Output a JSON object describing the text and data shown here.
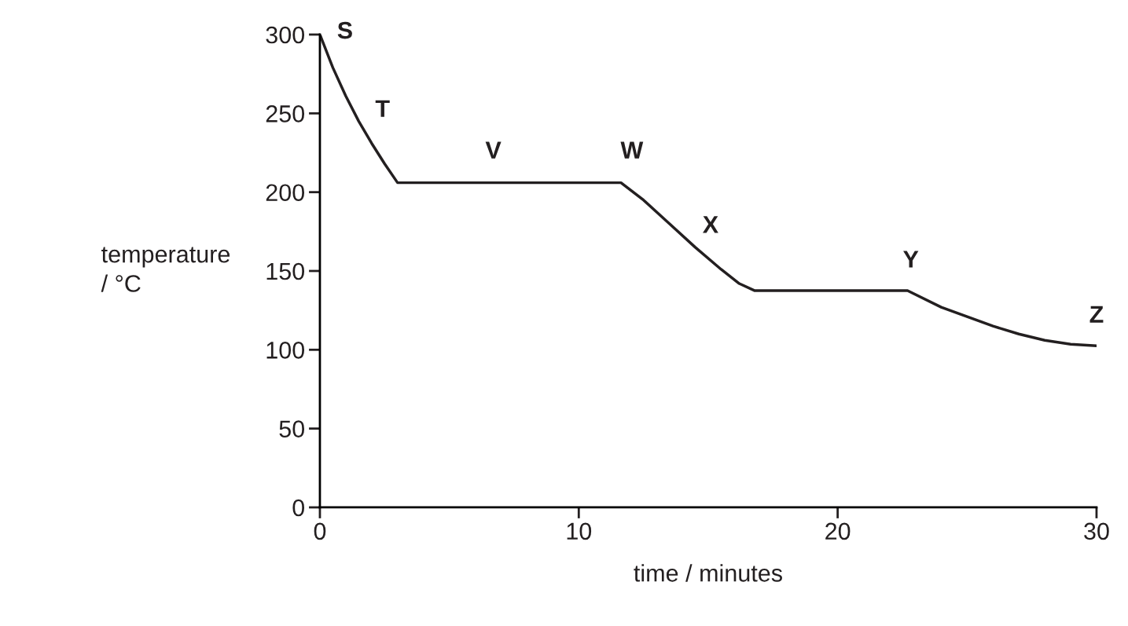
{
  "chart_data": {
    "type": "line",
    "xlabel": "time / minutes",
    "ylabel": "temperature\n/ °C",
    "series": [
      {
        "color": "#231f20",
        "x": [
          0,
          0.5,
          1,
          1.5,
          2,
          2.5,
          3,
          11.63,
          12.5,
          13.5,
          14.5,
          15.5,
          16.2,
          16.8,
          22.7,
          24,
          25,
          26,
          27,
          28,
          29,
          30
        ],
        "values": [
          300,
          279,
          261,
          245,
          231,
          218,
          206,
          206,
          195,
          180,
          165,
          151,
          142,
          137.5,
          137.5,
          127,
          121,
          115,
          110,
          106,
          103.5,
          102.5
        ]
      }
    ],
    "xlim": [
      0,
      30
    ],
    "xticks": [
      0,
      10,
      20,
      30
    ],
    "ylim": [
      0,
      300
    ],
    "yticks": [
      0,
      50,
      100,
      150,
      200,
      250,
      300
    ],
    "grid": false,
    "legend": false,
    "marker": "none",
    "line_style": "solid",
    "annotations": [
      {
        "text": "S",
        "x": 0,
        "y": 300
      },
      {
        "text": "T",
        "x": 2,
        "y": 231
      },
      {
        "text": "V",
        "x": 6.7,
        "y": 206
      },
      {
        "text": "W",
        "x": 11.63,
        "y": 206
      },
      {
        "text": "X",
        "x": 14.5,
        "y": 165
      },
      {
        "text": "Y",
        "x": 22.7,
        "y": 137.5
      },
      {
        "text": "Z",
        "x": 30,
        "y": 102.5
      }
    ]
  }
}
